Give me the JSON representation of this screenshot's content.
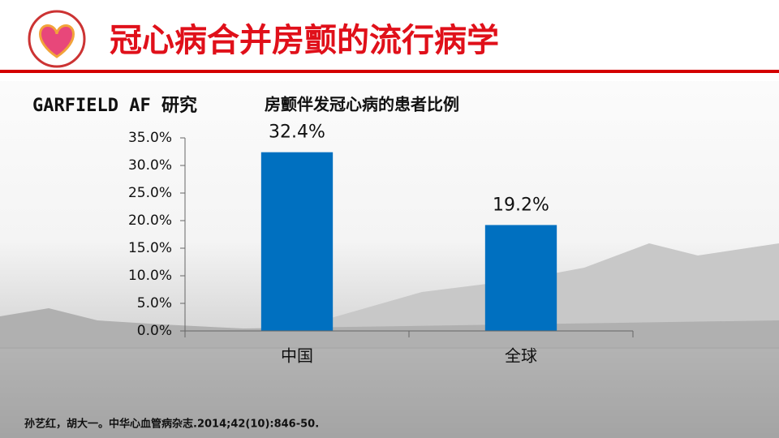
{
  "header": {
    "title": "冠心病合并房颤的流行病学"
  },
  "study": "GARFIELD AF 研究",
  "chart_data": {
    "type": "bar",
    "title": "房颤伴发冠心病的患者比例",
    "categories": [
      "中国",
      "全球"
    ],
    "values": [
      32.4,
      19.2
    ],
    "value_labels": [
      "32.4%",
      "19.2%"
    ],
    "color": "#0070c0",
    "ylim": [
      0,
      35
    ],
    "yticks": [
      {
        "value": 0,
        "label": "0.0%"
      },
      {
        "value": 5,
        "label": "5.0%"
      },
      {
        "value": 10,
        "label": "10.0%"
      },
      {
        "value": 15,
        "label": "15.0%"
      },
      {
        "value": 20,
        "label": "20.0%"
      },
      {
        "value": 25,
        "label": "25.0%"
      },
      {
        "value": 30,
        "label": "30.0%"
      },
      {
        "value": 35,
        "label": "35.0%"
      }
    ]
  },
  "citation": "孙艺红，胡大一。中华心血管病杂志.2014;42(10):846-50."
}
